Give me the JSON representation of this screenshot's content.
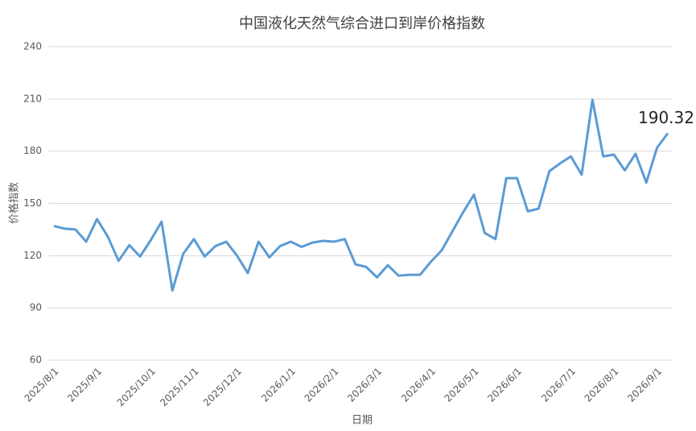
{
  "chart_data": {
    "type": "line",
    "title": "中国液化天然气综合进口到岸价格指数",
    "x_label": "日期",
    "y_label": "价格指数",
    "categories": [
      "2025/8/1",
      null,
      null,
      null,
      "2025/9/1",
      null,
      null,
      null,
      null,
      "2025/10/1",
      null,
      null,
      null,
      "2025/11/1",
      null,
      null,
      null,
      "2025/12/1",
      null,
      null,
      null,
      null,
      "2026/1/1",
      null,
      null,
      null,
      "2026/2/1",
      null,
      null,
      null,
      "2026/3/1",
      null,
      null,
      null,
      null,
      "2026/4/1",
      null,
      null,
      null,
      "2026/5/1",
      null,
      null,
      null,
      "2026/6/1",
      null,
      null,
      null,
      null,
      "2026/7/1",
      null,
      null,
      null,
      "2026/8/1",
      null,
      null,
      null,
      "2026/9/1",
      null
    ],
    "series": [
      {
        "name": "价格指数",
        "color": "#5b9bd5",
        "values": [
          137,
          135.5,
          135,
          128,
          141,
          131,
          117,
          126,
          119.5,
          129,
          139.5,
          100,
          121,
          129.5,
          119.5,
          125.5,
          128,
          120,
          110,
          128,
          119,
          125.5,
          128,
          125,
          127.5,
          128.5,
          128,
          129.5,
          115,
          113.5,
          107.5,
          114.5,
          108.5,
          109,
          109,
          116.5,
          123,
          134,
          145,
          155,
          133,
          129.5,
          164.5,
          164.5,
          145.5,
          147,
          168.5,
          173,
          177,
          166.5,
          209.5,
          177,
          178,
          169,
          178.5,
          162,
          182,
          190.32
        ],
        "value_labels": [
          null,
          null,
          null,
          null,
          null,
          null,
          null,
          null,
          null,
          null,
          null,
          null,
          null,
          null,
          null,
          null,
          null,
          null,
          null,
          null,
          null,
          null,
          null,
          null,
          null,
          null,
          null,
          null,
          null,
          null,
          null,
          null,
          null,
          null,
          null,
          null,
          null,
          null,
          null,
          null,
          null,
          null,
          null,
          null,
          null,
          null,
          null,
          null,
          null,
          null,
          null,
          null,
          null,
          null,
          null,
          null,
          null,
          "190.32"
        ]
      }
    ],
    "ylim": [
      60,
      240
    ],
    "yticks": [
      60,
      90,
      120,
      150,
      180,
      210,
      240
    ],
    "grid": true
  }
}
